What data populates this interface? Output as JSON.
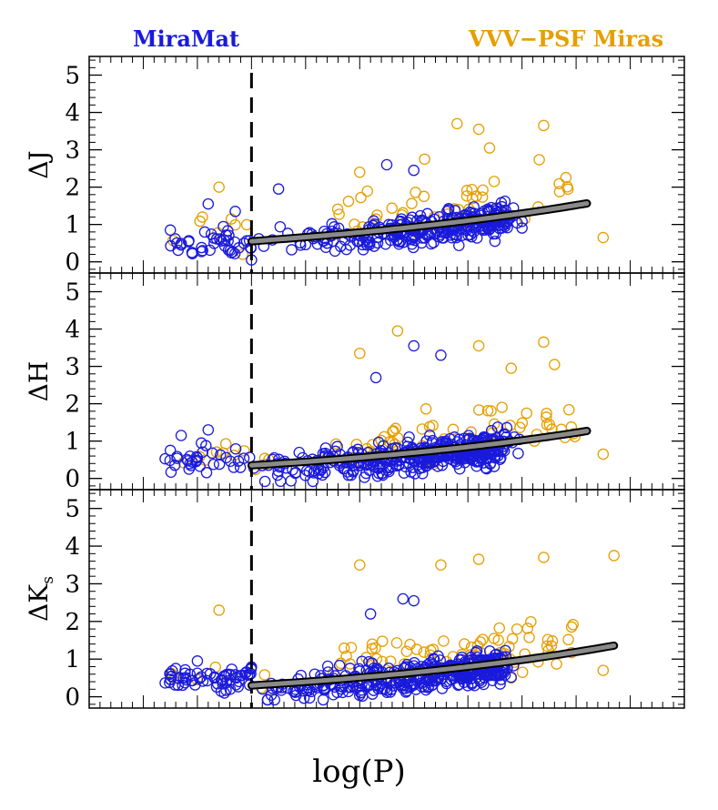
{
  "legend": [
    {
      "label": "MiraMat",
      "color": "#1a1adb"
    },
    {
      "label": "VVV−PSF Miras",
      "color": "#e69f00"
    }
  ],
  "xlabel": "log(P)",
  "colors": {
    "mira": "#1a1adb",
    "vvv": "#e69f00",
    "fit_fill": "#8a8a8a",
    "fit_edge": "#000000",
    "axis": "#000000"
  },
  "chart_data": [
    {
      "type": "scatter",
      "ylabel": "ΔJ",
      "ylim": [
        -0.3,
        5.5
      ],
      "yticks": [
        "0",
        "1",
        "2",
        "3",
        "4",
        "5"
      ],
      "xlim": [
        2.0,
        3.1
      ],
      "cutoff_x": 2.3,
      "grid": false,
      "fit": {
        "x0": 2.3,
        "y0": 0.55,
        "a": 0.75,
        "b": 1.38,
        "x_end": 2.92
      },
      "seed": 11,
      "mira_count": 360,
      "vvv_count": 60,
      "mira_samples": [
        [
          2.15,
          0.85
        ],
        [
          2.17,
          0.45
        ],
        [
          2.19,
          0.25
        ],
        [
          2.22,
          1.55
        ],
        [
          2.27,
          1.35
        ],
        [
          2.3,
          0.05
        ],
        [
          2.35,
          1.95
        ],
        [
          2.55,
          2.6
        ],
        [
          2.6,
          2.45
        ],
        [
          2.75,
          0.55
        ]
      ],
      "vvv_samples": [
        [
          2.24,
          2.0
        ],
        [
          2.68,
          3.7
        ],
        [
          2.72,
          3.55
        ],
        [
          2.84,
          3.65
        ],
        [
          2.74,
          3.05
        ],
        [
          2.95,
          0.65
        ],
        [
          2.5,
          2.4
        ],
        [
          2.62,
          2.75
        ]
      ]
    },
    {
      "type": "scatter",
      "ylabel": "ΔH",
      "ylim": [
        -0.3,
        5.5
      ],
      "yticks": [
        "0",
        "1",
        "2",
        "3",
        "4",
        "5"
      ],
      "xlim": [
        2.0,
        3.1
      ],
      "cutoff_x": 2.3,
      "grid": false,
      "fit": {
        "x0": 2.3,
        "y0": 0.35,
        "a": 0.6,
        "b": 1.5,
        "x_end": 2.92
      },
      "seed": 23,
      "mira_count": 470,
      "vvv_count": 75,
      "mira_samples": [
        [
          2.15,
          0.75
        ],
        [
          2.17,
          1.15
        ],
        [
          2.2,
          0.55
        ],
        [
          2.22,
          1.3
        ],
        [
          2.6,
          3.55
        ],
        [
          2.65,
          3.3
        ],
        [
          2.53,
          2.7
        ],
        [
          2.75,
          0.55
        ]
      ],
      "vvv_samples": [
        [
          2.57,
          3.95
        ],
        [
          2.84,
          3.65
        ],
        [
          2.86,
          3.05
        ],
        [
          2.95,
          0.65
        ],
        [
          2.72,
          3.55
        ],
        [
          2.5,
          3.35
        ],
        [
          2.78,
          2.95
        ]
      ]
    },
    {
      "type": "scatter",
      "ylabel": "ΔKs",
      "ylim": [
        -0.3,
        5.5
      ],
      "yticks": [
        "0",
        "1",
        "2",
        "3",
        "4",
        "5"
      ],
      "xlim": [
        2.0,
        3.1
      ],
      "cutoff_x": 2.3,
      "grid": false,
      "fit": {
        "x0": 2.3,
        "y0": 0.3,
        "a": 0.58,
        "b": 1.55,
        "x_end": 2.97
      },
      "seed": 37,
      "mira_count": 480,
      "vvv_count": 85,
      "mira_samples": [
        [
          2.15,
          0.6
        ],
        [
          2.16,
          0.75
        ],
        [
          2.2,
          0.95
        ],
        [
          2.25,
          0.1
        ],
        [
          2.58,
          2.6
        ],
        [
          2.6,
          2.55
        ],
        [
          2.52,
          2.2
        ]
      ],
      "vvv_samples": [
        [
          2.24,
          2.3
        ],
        [
          2.5,
          3.5
        ],
        [
          2.72,
          3.65
        ],
        [
          2.84,
          3.7
        ],
        [
          2.97,
          3.75
        ],
        [
          2.95,
          0.7
        ],
        [
          2.78,
          0.5
        ],
        [
          2.65,
          3.5
        ]
      ]
    }
  ]
}
